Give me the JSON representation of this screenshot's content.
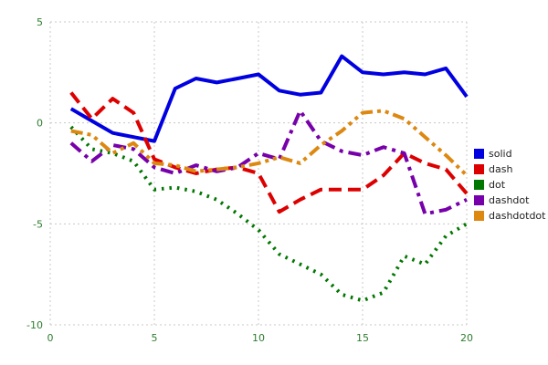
{
  "chart_data": {
    "type": "line",
    "x": [
      1,
      2,
      3,
      4,
      5,
      6,
      7,
      8,
      9,
      10,
      11,
      12,
      13,
      14,
      15,
      16,
      17,
      18,
      19,
      20
    ],
    "series": [
      {
        "name": "solid",
        "style": "solid",
        "color": "#0000e0",
        "values": [
          0.7,
          0.1,
          -0.5,
          -0.7,
          -0.9,
          1.7,
          2.2,
          2.0,
          2.2,
          2.4,
          1.6,
          1.4,
          1.5,
          3.3,
          2.5,
          2.4,
          2.5,
          2.4,
          2.7,
          1.3
        ]
      },
      {
        "name": "dash",
        "style": "dash",
        "color": "#dd0000",
        "values": [
          1.5,
          0.2,
          1.2,
          0.5,
          -1.8,
          -2.2,
          -2.5,
          -2.3,
          -2.2,
          -2.5,
          -4.4,
          -3.8,
          -3.3,
          -3.3,
          -3.3,
          -2.6,
          -1.5,
          -2.0,
          -2.3,
          -3.5
        ]
      },
      {
        "name": "dot",
        "style": "dot",
        "color": "#007700",
        "values": [
          -0.2,
          -1.3,
          -1.5,
          -1.9,
          -3.3,
          -3.2,
          -3.4,
          -3.8,
          -4.5,
          -5.3,
          -6.5,
          -7.0,
          -7.5,
          -8.5,
          -8.8,
          -8.4,
          -6.6,
          -7.0,
          -5.6,
          -5.0
        ]
      },
      {
        "name": "dashdot",
        "style": "dashdot",
        "color": "#7700aa",
        "values": [
          -1.0,
          -1.9,
          -1.1,
          -1.3,
          -2.2,
          -2.5,
          -2.1,
          -2.4,
          -2.2,
          -1.5,
          -1.8,
          0.6,
          -0.9,
          -1.4,
          -1.6,
          -1.2,
          -1.5,
          -4.5,
          -4.3,
          -3.8
        ]
      },
      {
        "name": "dashdotdot",
        "style": "dashdotdot",
        "color": "#dd8811",
        "values": [
          -0.4,
          -0.6,
          -1.5,
          -1.0,
          -2.0,
          -2.1,
          -2.4,
          -2.3,
          -2.2,
          -2.0,
          -1.7,
          -2.0,
          -1.1,
          -0.4,
          0.5,
          0.6,
          0.2,
          -0.7,
          -1.6,
          -2.6
        ]
      }
    ],
    "title": "",
    "xlabel": "",
    "ylabel": "",
    "xlim": [
      0,
      20
    ],
    "ylim": [
      -10,
      5
    ],
    "xticks": [
      0,
      5,
      10,
      15,
      20
    ],
    "yticks": [
      -10,
      -5,
      0,
      5
    ],
    "grid": true,
    "legend_position": "right-outside"
  },
  "style": {
    "grid_color": "#c8c8c8",
    "tick_label_color": "#2e7d2e",
    "background": "#ffffff",
    "line_width": 4
  }
}
